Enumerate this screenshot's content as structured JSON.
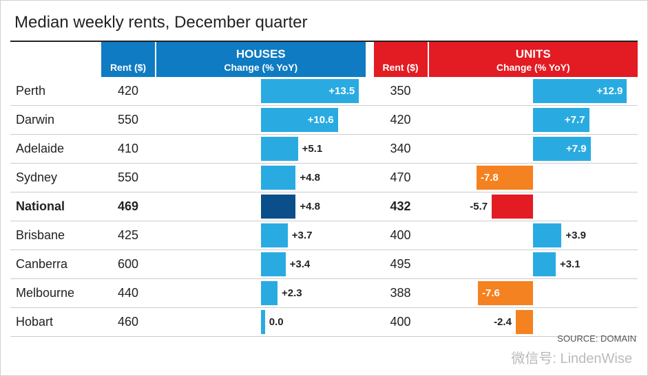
{
  "title": "Median weekly rents, December quarter",
  "source": "SOURCE: DOMAIN",
  "watermark": "微信号: LindenWise",
  "colors": {
    "houses_header": "#0f7bc2",
    "units_header": "#e31b23",
    "bar_pos": "#29abe2",
    "bar_national_pos": "#0b4f8a",
    "bar_neg_houses": "#f58220",
    "bar_neg_units": "#f58220",
    "bar_national_neg": "#e31b23",
    "row_alt_bg": "#f3f3f3",
    "text": "#222222"
  },
  "headers": {
    "rent": "Rent ($)",
    "houses": "HOUSES",
    "units": "UNITS",
    "change": "Change (% YoY)"
  },
  "chart": {
    "type": "bar",
    "axis_max_percent": 14.0,
    "bar_label_inside_threshold": 6.0,
    "label_fontsize": 15,
    "city_fontsize": 18,
    "title_fontsize": 24
  },
  "rows": [
    {
      "city": "Perth",
      "bold": false,
      "houses_rent": "420",
      "houses_change": 13.5,
      "houses_label": "+13.5",
      "units_rent": "350",
      "units_change": 12.9,
      "units_label": "+12.9"
    },
    {
      "city": "Darwin",
      "bold": false,
      "houses_rent": "550",
      "houses_change": 10.6,
      "houses_label": "+10.6",
      "units_rent": "420",
      "units_change": 7.7,
      "units_label": "+7.7"
    },
    {
      "city": "Adelaide",
      "bold": false,
      "houses_rent": "410",
      "houses_change": 5.1,
      "houses_label": "+5.1",
      "units_rent": "340",
      "units_change": 7.9,
      "units_label": "+7.9"
    },
    {
      "city": "Sydney",
      "bold": false,
      "houses_rent": "550",
      "houses_change": 4.8,
      "houses_label": "+4.8",
      "units_rent": "470",
      "units_change": -7.8,
      "units_label": "-7.8"
    },
    {
      "city": "National",
      "bold": true,
      "houses_rent": "469",
      "houses_change": 4.8,
      "houses_label": "+4.8",
      "units_rent": "432",
      "units_change": -5.7,
      "units_label": "-5.7"
    },
    {
      "city": "Brisbane",
      "bold": false,
      "houses_rent": "425",
      "houses_change": 3.7,
      "houses_label": "+3.7",
      "units_rent": "400",
      "units_change": 3.9,
      "units_label": "+3.9"
    },
    {
      "city": "Canberra",
      "bold": false,
      "houses_rent": "600",
      "houses_change": 3.4,
      "houses_label": "+3.4",
      "units_rent": "495",
      "units_change": 3.1,
      "units_label": "+3.1"
    },
    {
      "city": "Melbourne",
      "bold": false,
      "houses_rent": "440",
      "houses_change": 2.3,
      "houses_label": "+2.3",
      "units_rent": "388",
      "units_change": -7.6,
      "units_label": "-7.6"
    },
    {
      "city": "Hobart",
      "bold": false,
      "houses_rent": "460",
      "houses_change": 0.0,
      "houses_label": "0.0",
      "units_rent": "400",
      "units_change": -2.4,
      "units_label": "-2.4"
    }
  ]
}
